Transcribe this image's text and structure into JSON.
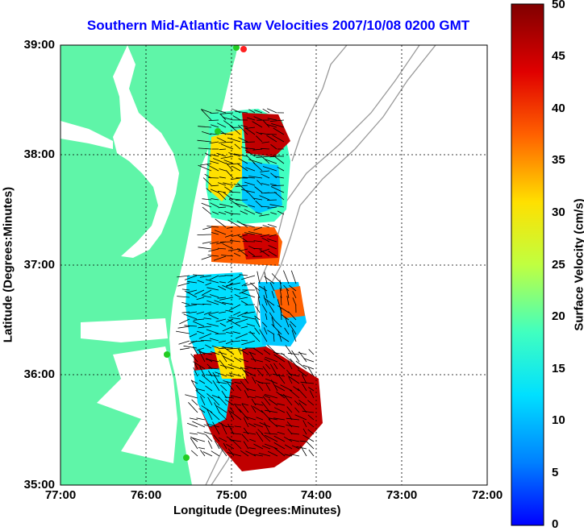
{
  "title": "Southern Mid-Atlantic Raw Velocities 2007/10/08 0200 GMT",
  "x_axis": {
    "label": "Longitude (Degrees:Minutes)",
    "ticks": [
      "77:00",
      "76:00",
      "75:00",
      "74:00",
      "73:00",
      "72:00"
    ]
  },
  "y_axis": {
    "label": "Latitude (Degrees:Minutes)",
    "ticks": [
      "39:00",
      "38:00",
      "37:00",
      "36:00",
      "35:00"
    ]
  },
  "colorbar": {
    "label": "Surface Velocity (cm/s)",
    "ticks": [
      "50",
      "45",
      "40",
      "35",
      "30",
      "25",
      "20",
      "15",
      "10",
      "5",
      "0"
    ],
    "min": 0,
    "max": 50
  },
  "colors": {
    "land": "#5ff5a8",
    "water": "#ffffff",
    "title": "#0000ff",
    "bathymetry": "#9a9a9a",
    "station": "#22cc22",
    "station_alt": "#ff2020"
  }
}
